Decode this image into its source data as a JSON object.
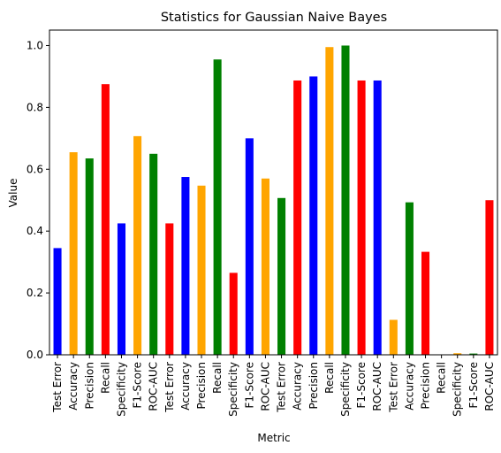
{
  "chart_data": {
    "type": "bar",
    "title": "Statistics for Gaussian Naive Bayes",
    "xlabel": "Metric",
    "ylabel": "Value",
    "ylim": [
      0,
      1.05
    ],
    "yticks": [
      "0.0",
      "0.2",
      "0.4",
      "0.6",
      "0.8",
      "1.0"
    ],
    "grid": false,
    "legend": "none",
    "palette": {
      "blue": "#0000ff",
      "orange": "#ffa500",
      "green": "#008000",
      "red": "#ff0000"
    },
    "bars": [
      {
        "label": "Test Error",
        "value": 0.345,
        "color": "blue"
      },
      {
        "label": "Accuracy",
        "value": 0.655,
        "color": "orange"
      },
      {
        "label": "Precision",
        "value": 0.635,
        "color": "green"
      },
      {
        "label": "Recall",
        "value": 0.875,
        "color": "red"
      },
      {
        "label": "Specificity",
        "value": 0.425,
        "color": "blue"
      },
      {
        "label": "F1-Score",
        "value": 0.707,
        "color": "orange"
      },
      {
        "label": "ROC-AUC",
        "value": 0.65,
        "color": "green"
      },
      {
        "label": "Test Error",
        "value": 0.425,
        "color": "red"
      },
      {
        "label": "Accuracy",
        "value": 0.575,
        "color": "blue"
      },
      {
        "label": "Precision",
        "value": 0.547,
        "color": "orange"
      },
      {
        "label": "Recall",
        "value": 0.955,
        "color": "green"
      },
      {
        "label": "Specificity",
        "value": 0.265,
        "color": "red"
      },
      {
        "label": "F1-Score",
        "value": 0.7,
        "color": "blue"
      },
      {
        "label": "ROC-AUC",
        "value": 0.57,
        "color": "orange"
      },
      {
        "label": "Test Error",
        "value": 0.507,
        "color": "green"
      },
      {
        "label": "Accuracy",
        "value": 0.887,
        "color": "red"
      },
      {
        "label": "Precision",
        "value": 0.9,
        "color": "blue"
      },
      {
        "label": "Recall",
        "value": 0.995,
        "color": "orange"
      },
      {
        "label": "Specificity",
        "value": 1.0,
        "color": "green"
      },
      {
        "label": "F1-Score",
        "value": 0.887,
        "color": "red"
      },
      {
        "label": "ROC-AUC",
        "value": 0.887,
        "color": "blue"
      },
      {
        "label": "Test Error",
        "value": 0.113,
        "color": "orange"
      },
      {
        "label": "Accuracy",
        "value": 0.493,
        "color": "green"
      },
      {
        "label": "Precision",
        "value": 0.333,
        "color": "red"
      },
      {
        "label": "Recall",
        "value": 0.0,
        "color": "blue"
      },
      {
        "label": "Specificity",
        "value": 0.005,
        "color": "orange"
      },
      {
        "label": "F1-Score",
        "value": 0.004,
        "color": "green"
      },
      {
        "label": "ROC-AUC",
        "value": 0.5,
        "color": "red"
      }
    ]
  }
}
